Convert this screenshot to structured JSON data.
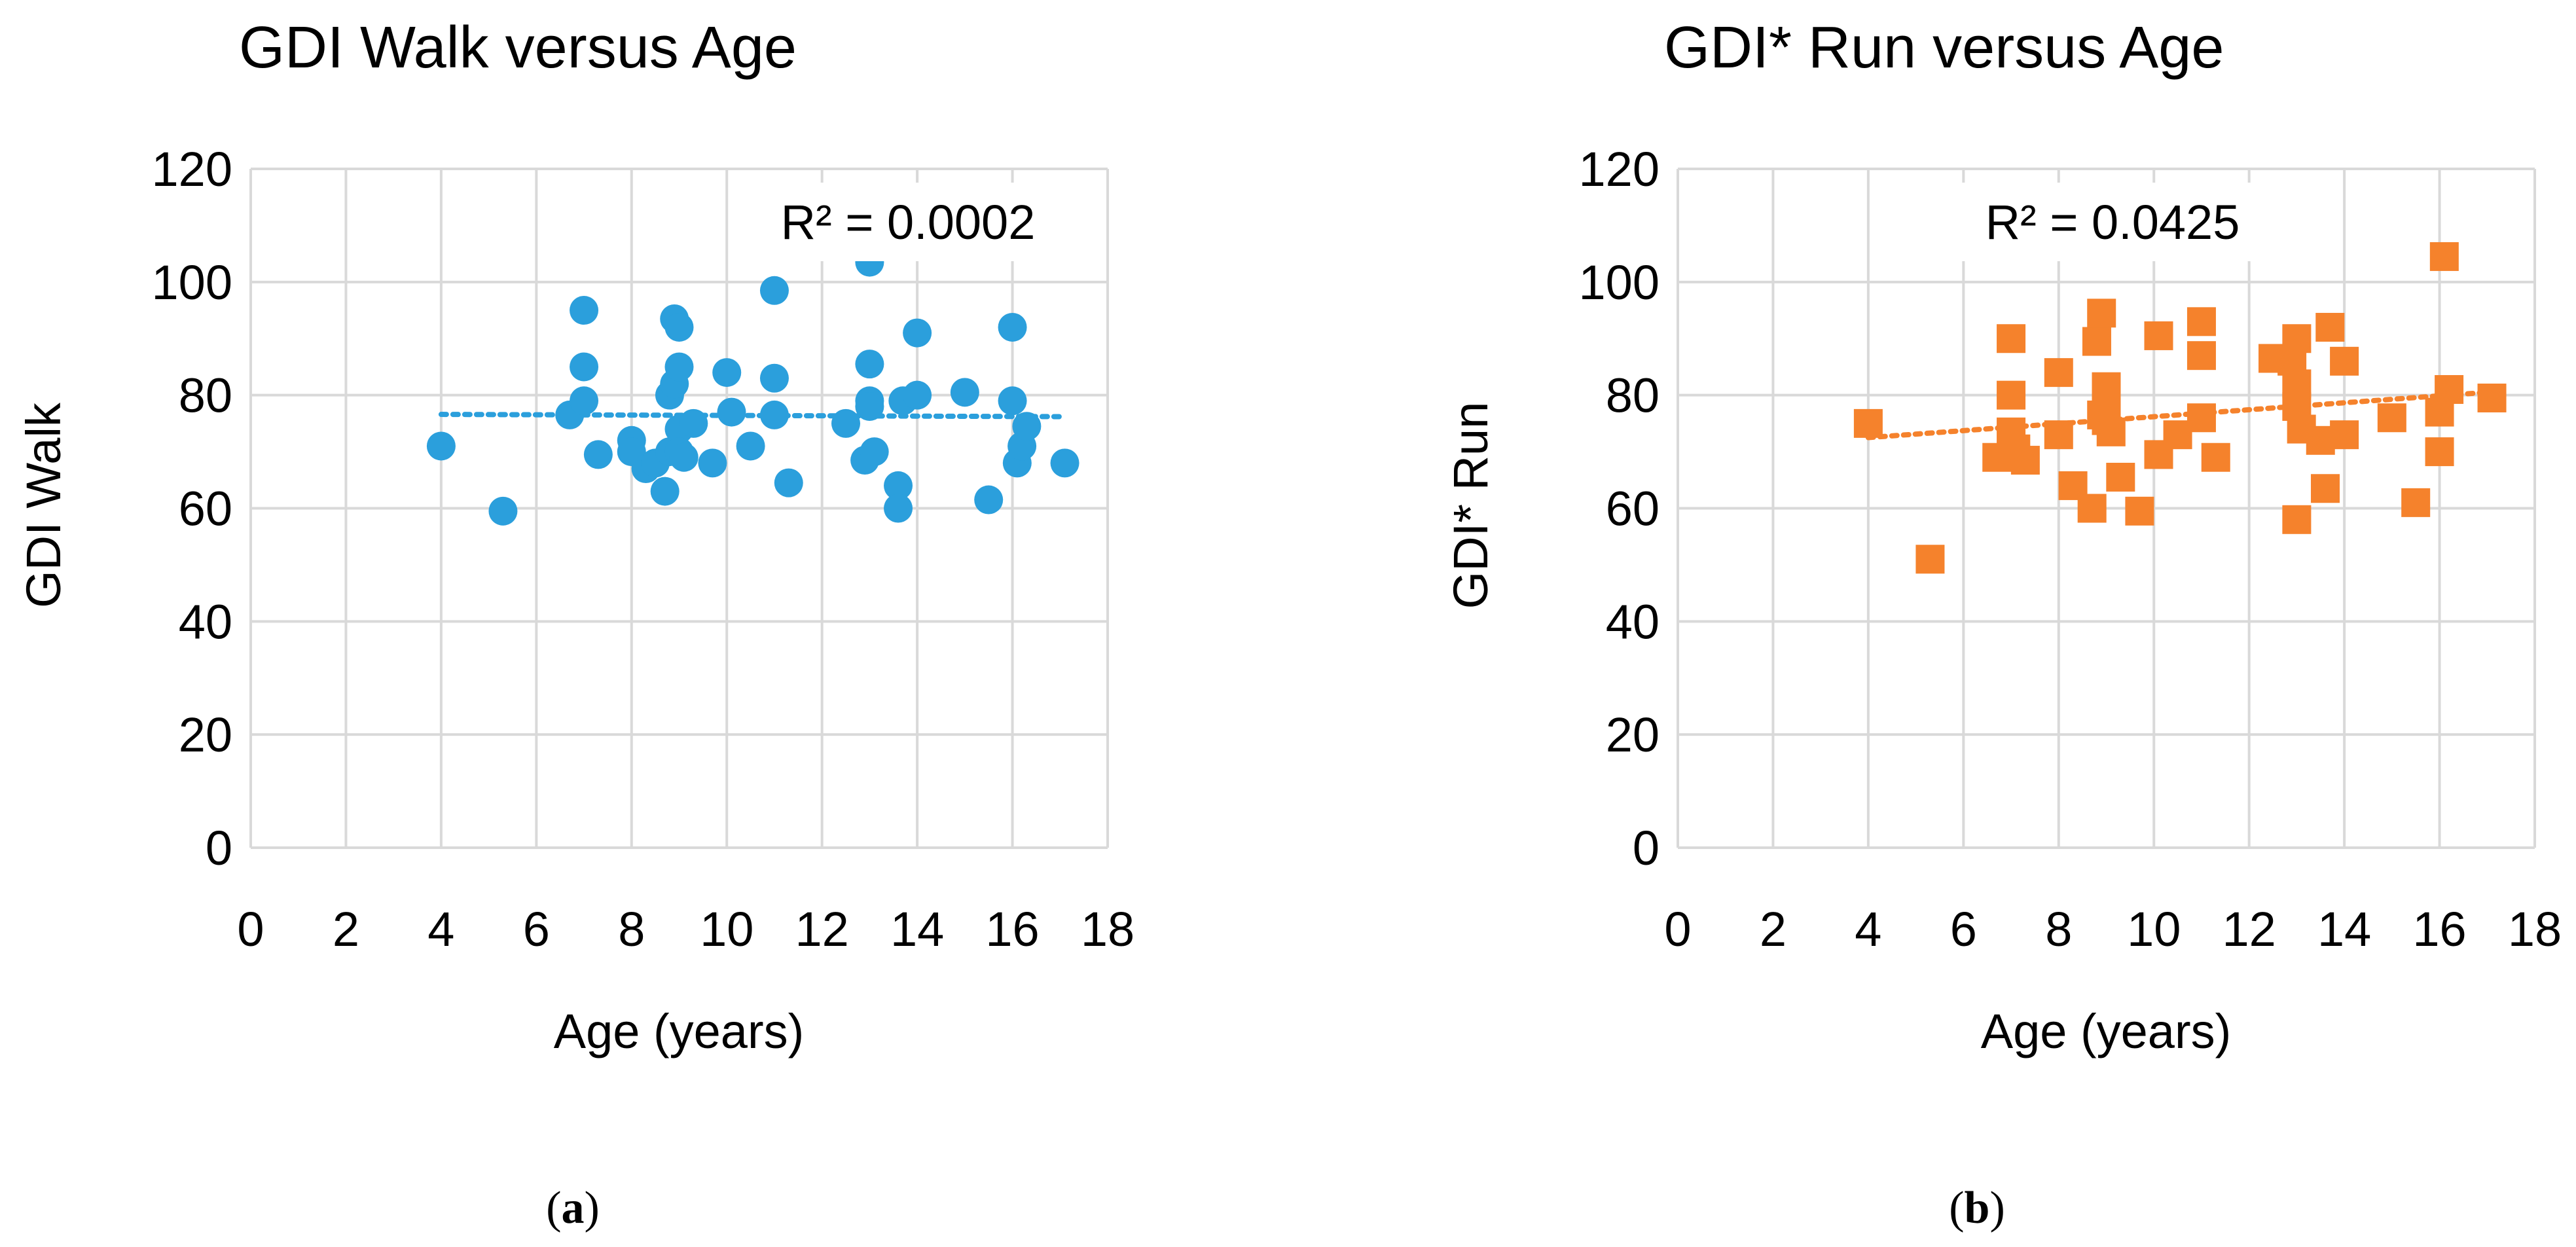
{
  "chart_data": [
    {
      "type": "scatter",
      "title": "GDI Walk versus Age",
      "xlabel": "Age (years)",
      "ylabel": "GDI Walk",
      "xlim": [
        0,
        18
      ],
      "ylim": [
        0,
        120
      ],
      "x_ticks": [
        "0",
        "2",
        "4",
        "6",
        "8",
        "10",
        "12",
        "14",
        "16",
        "18"
      ],
      "y_ticks": [
        "0",
        "20",
        "40",
        "60",
        "80",
        "100",
        "120"
      ],
      "grid": true,
      "marker": "circle",
      "color": "#2B9FDC",
      "r2_label": "R² = 0.0002",
      "trendline": {
        "x": [
          4,
          17
        ],
        "y": [
          76.6,
          76.2
        ]
      },
      "caption_letter": "a",
      "series": [
        {
          "x": [
            4,
            5.3,
            6.7,
            7,
            7,
            7,
            7.3,
            8,
            8,
            8.3,
            8.5,
            8.7,
            8.8,
            8.8,
            8.9,
            8.9,
            9,
            9,
            9,
            9,
            9.1,
            9.3,
            9.7,
            10,
            10.1,
            10.5,
            11,
            11,
            11,
            11.3,
            12.5,
            12.9,
            13,
            13,
            13,
            13,
            13.1,
            13.6,
            13.6,
            13.7,
            14,
            14,
            15,
            15.5,
            16,
            16,
            16.1,
            16.2,
            16.3,
            17.1
          ],
          "y": [
            71,
            59.5,
            76.5,
            95,
            85,
            79,
            69.5,
            72,
            70,
            67,
            68,
            63,
            80,
            70,
            93.5,
            82,
            92,
            85,
            74,
            70,
            69,
            75,
            68,
            84,
            77,
            71,
            98.5,
            83,
            76.5,
            64.5,
            75,
            68.5,
            103.5,
            85.5,
            79,
            78,
            70,
            64,
            60,
            79,
            91,
            80,
            80.5,
            61.5,
            92,
            79,
            68,
            71,
            74.5,
            68
          ]
        }
      ]
    },
    {
      "type": "scatter",
      "title": "GDI* Run versus Age",
      "xlabel": "Age (years)",
      "ylabel": "GDI* Run",
      "xlim": [
        0,
        18
      ],
      "ylim": [
        0,
        120
      ],
      "x_ticks": [
        "0",
        "2",
        "4",
        "6",
        "8",
        "10",
        "12",
        "14",
        "16",
        "18"
      ],
      "y_ticks": [
        "0",
        "20",
        "40",
        "60",
        "80",
        "100",
        "120"
      ],
      "grid": true,
      "marker": "square",
      "color": "#F5822C",
      "r2_label": "R² = 0.0425",
      "trendline": {
        "x": [
          4,
          17
        ],
        "y": [
          72.5,
          80.5
        ]
      },
      "caption_letter": "b",
      "series": [
        {
          "x": [
            4,
            5.3,
            6.7,
            7,
            7,
            7,
            7.1,
            7.3,
            8,
            8,
            8.3,
            8.7,
            8.8,
            8.9,
            8.9,
            9,
            9,
            9,
            9.1,
            9.3,
            9.7,
            10.1,
            10.1,
            10.5,
            11,
            11,
            11,
            11.3,
            12.5,
            12.9,
            13,
            13,
            13,
            13,
            13.1,
            13.5,
            13.6,
            13.7,
            14,
            14,
            15,
            15.5,
            16,
            16,
            16.1,
            16.2,
            17.1
          ],
          "y": [
            75,
            51,
            69,
            90,
            80,
            73.5,
            70.5,
            68.5,
            84,
            73,
            64,
            60,
            89.5,
            94.5,
            76.5,
            81.5,
            79,
            75.5,
            73.5,
            65.5,
            59.5,
            90.5,
            69.5,
            73,
            93,
            87,
            76,
            69,
            86.5,
            86,
            90,
            82,
            78,
            58,
            74,
            72,
            63.5,
            92,
            86,
            73,
            76,
            61,
            70,
            77,
            104.5,
            81,
            79.5
          ]
        }
      ]
    }
  ]
}
